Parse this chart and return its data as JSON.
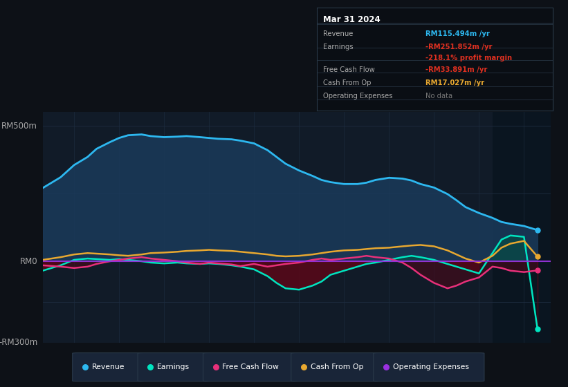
{
  "bg_color": "#0d1117",
  "plot_bg_color": "#111b28",
  "plot_bg_right": "#0d1520",
  "title": "Mar 31 2024",
  "ylabel_top": "RM500m",
  "ylabel_mid": "RM0",
  "ylabel_bot": "-RM300m",
  "ylim": [
    -300,
    550
  ],
  "xlim_start": 2013.3,
  "xlim_end": 2024.6,
  "xticks": [
    2014,
    2015,
    2016,
    2017,
    2018,
    2019,
    2020,
    2021,
    2022,
    2023,
    2024
  ],
  "legend_items": [
    "Revenue",
    "Earnings",
    "Free Cash Flow",
    "Cash From Op",
    "Operating Expenses"
  ],
  "legend_colors": [
    "#2db8f0",
    "#00e5c0",
    "#e8307a",
    "#e8a830",
    "#9930e0"
  ],
  "revenue_color": "#2db8f0",
  "revenue_fill_color": "#1a3a5a",
  "earnings_color": "#00e5c0",
  "earnings_neg_fill": "#5a1020",
  "earnings_pos_fill": "#00e5c0",
  "fcf_color": "#e8307a",
  "fcf_neg_fill": "#5a1020",
  "cfo_color": "#e8a830",
  "op_exp_color": "#9930e0",
  "revenue": {
    "years": [
      2013.3,
      2013.7,
      2014.0,
      2014.3,
      2014.5,
      2014.8,
      2015.0,
      2015.2,
      2015.5,
      2015.7,
      2016.0,
      2016.3,
      2016.5,
      2016.8,
      2017.0,
      2017.2,
      2017.5,
      2017.7,
      2018.0,
      2018.3,
      2018.5,
      2018.7,
      2019.0,
      2019.3,
      2019.5,
      2019.7,
      2020.0,
      2020.3,
      2020.5,
      2020.7,
      2021.0,
      2021.3,
      2021.5,
      2021.7,
      2022.0,
      2022.3,
      2022.5,
      2022.7,
      2023.0,
      2023.3,
      2023.5,
      2023.7,
      2024.0,
      2024.3
    ],
    "values": [
      270,
      310,
      355,
      385,
      415,
      440,
      455,
      465,
      468,
      462,
      458,
      460,
      462,
      458,
      455,
      452,
      450,
      445,
      435,
      410,
      385,
      360,
      335,
      315,
      300,
      292,
      285,
      285,
      290,
      300,
      308,
      305,
      298,
      285,
      272,
      248,
      225,
      200,
      178,
      160,
      145,
      138,
      130,
      115
    ]
  },
  "earnings": {
    "years": [
      2013.3,
      2013.7,
      2014.0,
      2014.3,
      2014.5,
      2014.8,
      2015.0,
      2015.2,
      2015.5,
      2015.7,
      2016.0,
      2016.3,
      2016.5,
      2016.8,
      2017.0,
      2017.2,
      2017.5,
      2017.7,
      2018.0,
      2018.3,
      2018.5,
      2018.7,
      2019.0,
      2019.3,
      2019.5,
      2019.7,
      2020.0,
      2020.3,
      2020.5,
      2020.7,
      2021.0,
      2021.3,
      2021.5,
      2021.7,
      2022.0,
      2022.3,
      2022.5,
      2022.7,
      2023.0,
      2023.3,
      2023.5,
      2023.7,
      2024.0,
      2024.3
    ],
    "values": [
      -35,
      -15,
      5,
      10,
      8,
      5,
      8,
      5,
      0,
      -5,
      -8,
      -5,
      -8,
      -10,
      -8,
      -10,
      -15,
      -20,
      -30,
      -55,
      -80,
      -100,
      -105,
      -90,
      -75,
      -50,
      -35,
      -20,
      -10,
      -5,
      5,
      15,
      20,
      15,
      5,
      -10,
      -20,
      -30,
      -45,
      30,
      80,
      95,
      90,
      -250
    ]
  },
  "free_cash_flow": {
    "years": [
      2013.3,
      2013.7,
      2014.0,
      2014.3,
      2014.5,
      2014.8,
      2015.0,
      2015.2,
      2015.5,
      2015.7,
      2016.0,
      2016.3,
      2016.5,
      2016.8,
      2017.0,
      2017.2,
      2017.5,
      2017.7,
      2018.0,
      2018.3,
      2018.5,
      2018.7,
      2019.0,
      2019.3,
      2019.5,
      2019.7,
      2020.0,
      2020.3,
      2020.5,
      2020.7,
      2021.0,
      2021.3,
      2021.5,
      2021.7,
      2022.0,
      2022.3,
      2022.5,
      2022.7,
      2023.0,
      2023.3,
      2023.5,
      2023.7,
      2024.0,
      2024.3
    ],
    "values": [
      -15,
      -20,
      -25,
      -20,
      -10,
      0,
      5,
      10,
      15,
      10,
      5,
      0,
      -5,
      -10,
      -5,
      -8,
      -12,
      -18,
      -10,
      -20,
      -15,
      -10,
      -5,
      5,
      10,
      5,
      10,
      15,
      20,
      15,
      10,
      -5,
      -25,
      -50,
      -80,
      -100,
      -90,
      -75,
      -60,
      -20,
      -25,
      -35,
      -40,
      -34
    ]
  },
  "cash_from_op": {
    "years": [
      2013.3,
      2013.7,
      2014.0,
      2014.3,
      2014.5,
      2014.8,
      2015.0,
      2015.2,
      2015.5,
      2015.7,
      2016.0,
      2016.3,
      2016.5,
      2016.8,
      2017.0,
      2017.2,
      2017.5,
      2017.7,
      2018.0,
      2018.3,
      2018.5,
      2018.7,
      2019.0,
      2019.3,
      2019.5,
      2019.7,
      2020.0,
      2020.3,
      2020.5,
      2020.7,
      2021.0,
      2021.3,
      2021.5,
      2021.7,
      2022.0,
      2022.3,
      2022.5,
      2022.7,
      2023.0,
      2023.3,
      2023.5,
      2023.7,
      2024.0,
      2024.3
    ],
    "values": [
      5,
      15,
      25,
      30,
      28,
      25,
      22,
      20,
      25,
      30,
      32,
      35,
      38,
      40,
      42,
      40,
      38,
      35,
      30,
      25,
      20,
      18,
      20,
      25,
      30,
      35,
      40,
      42,
      45,
      48,
      50,
      55,
      58,
      60,
      55,
      40,
      25,
      10,
      -5,
      20,
      50,
      65,
      75,
      17
    ]
  }
}
